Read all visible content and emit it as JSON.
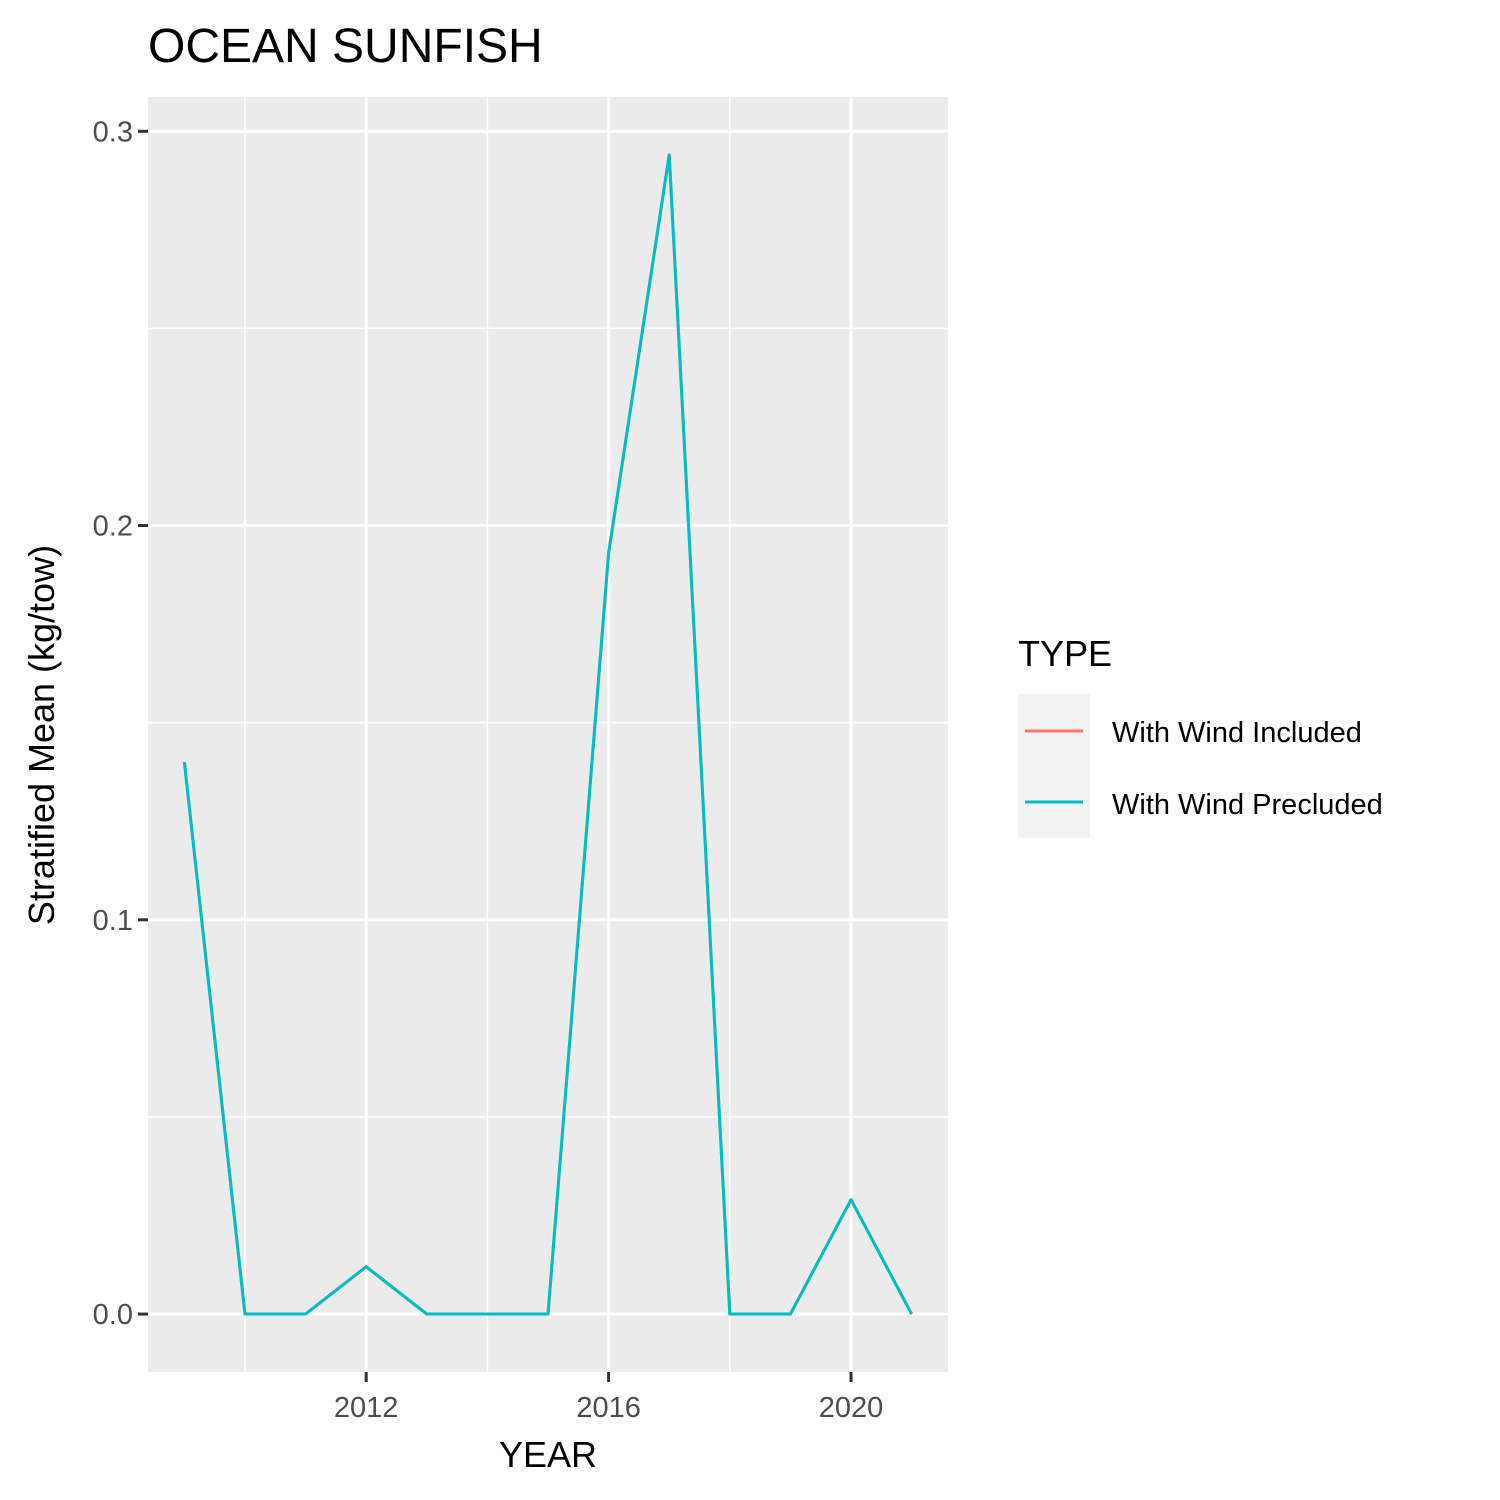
{
  "chart_data": {
    "type": "line",
    "title": "OCEAN SUNFISH",
    "xlabel": "YEAR",
    "ylabel": "Stratified Mean (kg/tow)",
    "x": [
      2009,
      2010,
      2011,
      2012,
      2013,
      2014,
      2015,
      2016,
      2017,
      2018,
      2019,
      2020,
      2021
    ],
    "series": [
      {
        "name": "With Wind Included",
        "color": "#F8766D",
        "values": [
          0.14,
          0,
          0,
          0.012,
          0,
          0,
          0,
          0.193,
          0.294,
          0,
          0,
          0.029,
          0
        ]
      },
      {
        "name": "With Wind Precluded",
        "color": "#00BFC4",
        "values": [
          0.14,
          0,
          0,
          0.012,
          0,
          0,
          0,
          0.193,
          0.294,
          0,
          0,
          0.029,
          0
        ]
      }
    ],
    "xlim": [
      2008.4,
      2021.6
    ],
    "ylim": [
      -0.0147,
      0.3087
    ],
    "x_ticks": [
      2012,
      2016,
      2020
    ],
    "x_tick_labels": [
      "2012",
      "2016",
      "2020"
    ],
    "x_minor_ticks": [
      2010,
      2014,
      2018
    ],
    "y_ticks": [
      0,
      0.1,
      0.2,
      0.3
    ],
    "y_tick_labels": [
      "0.0",
      "0.1",
      "0.2",
      "0.3"
    ],
    "y_minor_ticks": [
      0.05,
      0.15,
      0.25
    ],
    "grid": true,
    "panel_background": "#EBEBEB",
    "legend": {
      "title": "TYPE",
      "position": "right"
    }
  }
}
